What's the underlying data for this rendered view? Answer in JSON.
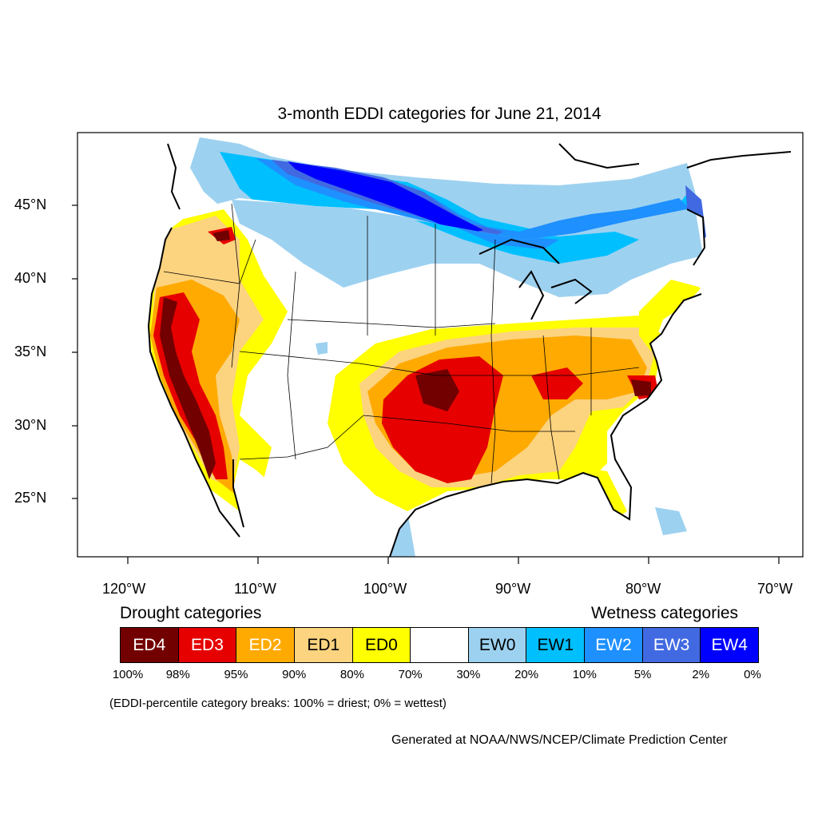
{
  "title": "3-month EDDI categories for June 21, 2014",
  "map": {
    "lat_ticks": [
      "45°N",
      "40°N",
      "35°N",
      "30°N",
      "25°N"
    ],
    "lon_ticks": [
      "120°W",
      "110°W",
      "100°W",
      "90°W",
      "80°W",
      "70°W"
    ]
  },
  "legend": {
    "drought_heading": "Drought categories",
    "wetness_heading": "Wetness categories",
    "categories": [
      {
        "label": "ED4",
        "color": "#730000",
        "text_color": "#ffffff"
      },
      {
        "label": "ED3",
        "color": "#e60000",
        "text_color": "#ffffff"
      },
      {
        "label": "ED2",
        "color": "#ffaa00",
        "text_color": "#ffffff"
      },
      {
        "label": "ED1",
        "color": "#fcd37f",
        "text_color": "#000000"
      },
      {
        "label": "ED0",
        "color": "#ffff00",
        "text_color": "#000000"
      },
      {
        "label": "",
        "color": "#ffffff",
        "text_color": "#000000"
      },
      {
        "label": "EW0",
        "color": "#9dd1f0",
        "text_color": "#000000"
      },
      {
        "label": "EW1",
        "color": "#00bfff",
        "text_color": "#000000"
      },
      {
        "label": "EW2",
        "color": "#1e90ff",
        "text_color": "#ffffff"
      },
      {
        "label": "EW3",
        "color": "#4169e1",
        "text_color": "#ffffff"
      },
      {
        "label": "EW4",
        "color": "#0000ff",
        "text_color": "#ffffff"
      }
    ],
    "breaks": [
      "100%",
      "98%",
      "95%",
      "90%",
      "80%",
      "70%",
      "30%",
      "20%",
      "10%",
      "5%",
      "2%",
      "0%"
    ]
  },
  "note": "(EDDI-percentile category breaks: 100% = driest; 0% = wettest)",
  "credit": "Generated at NOAA/NWS/NCEP/Climate Prediction Center"
}
